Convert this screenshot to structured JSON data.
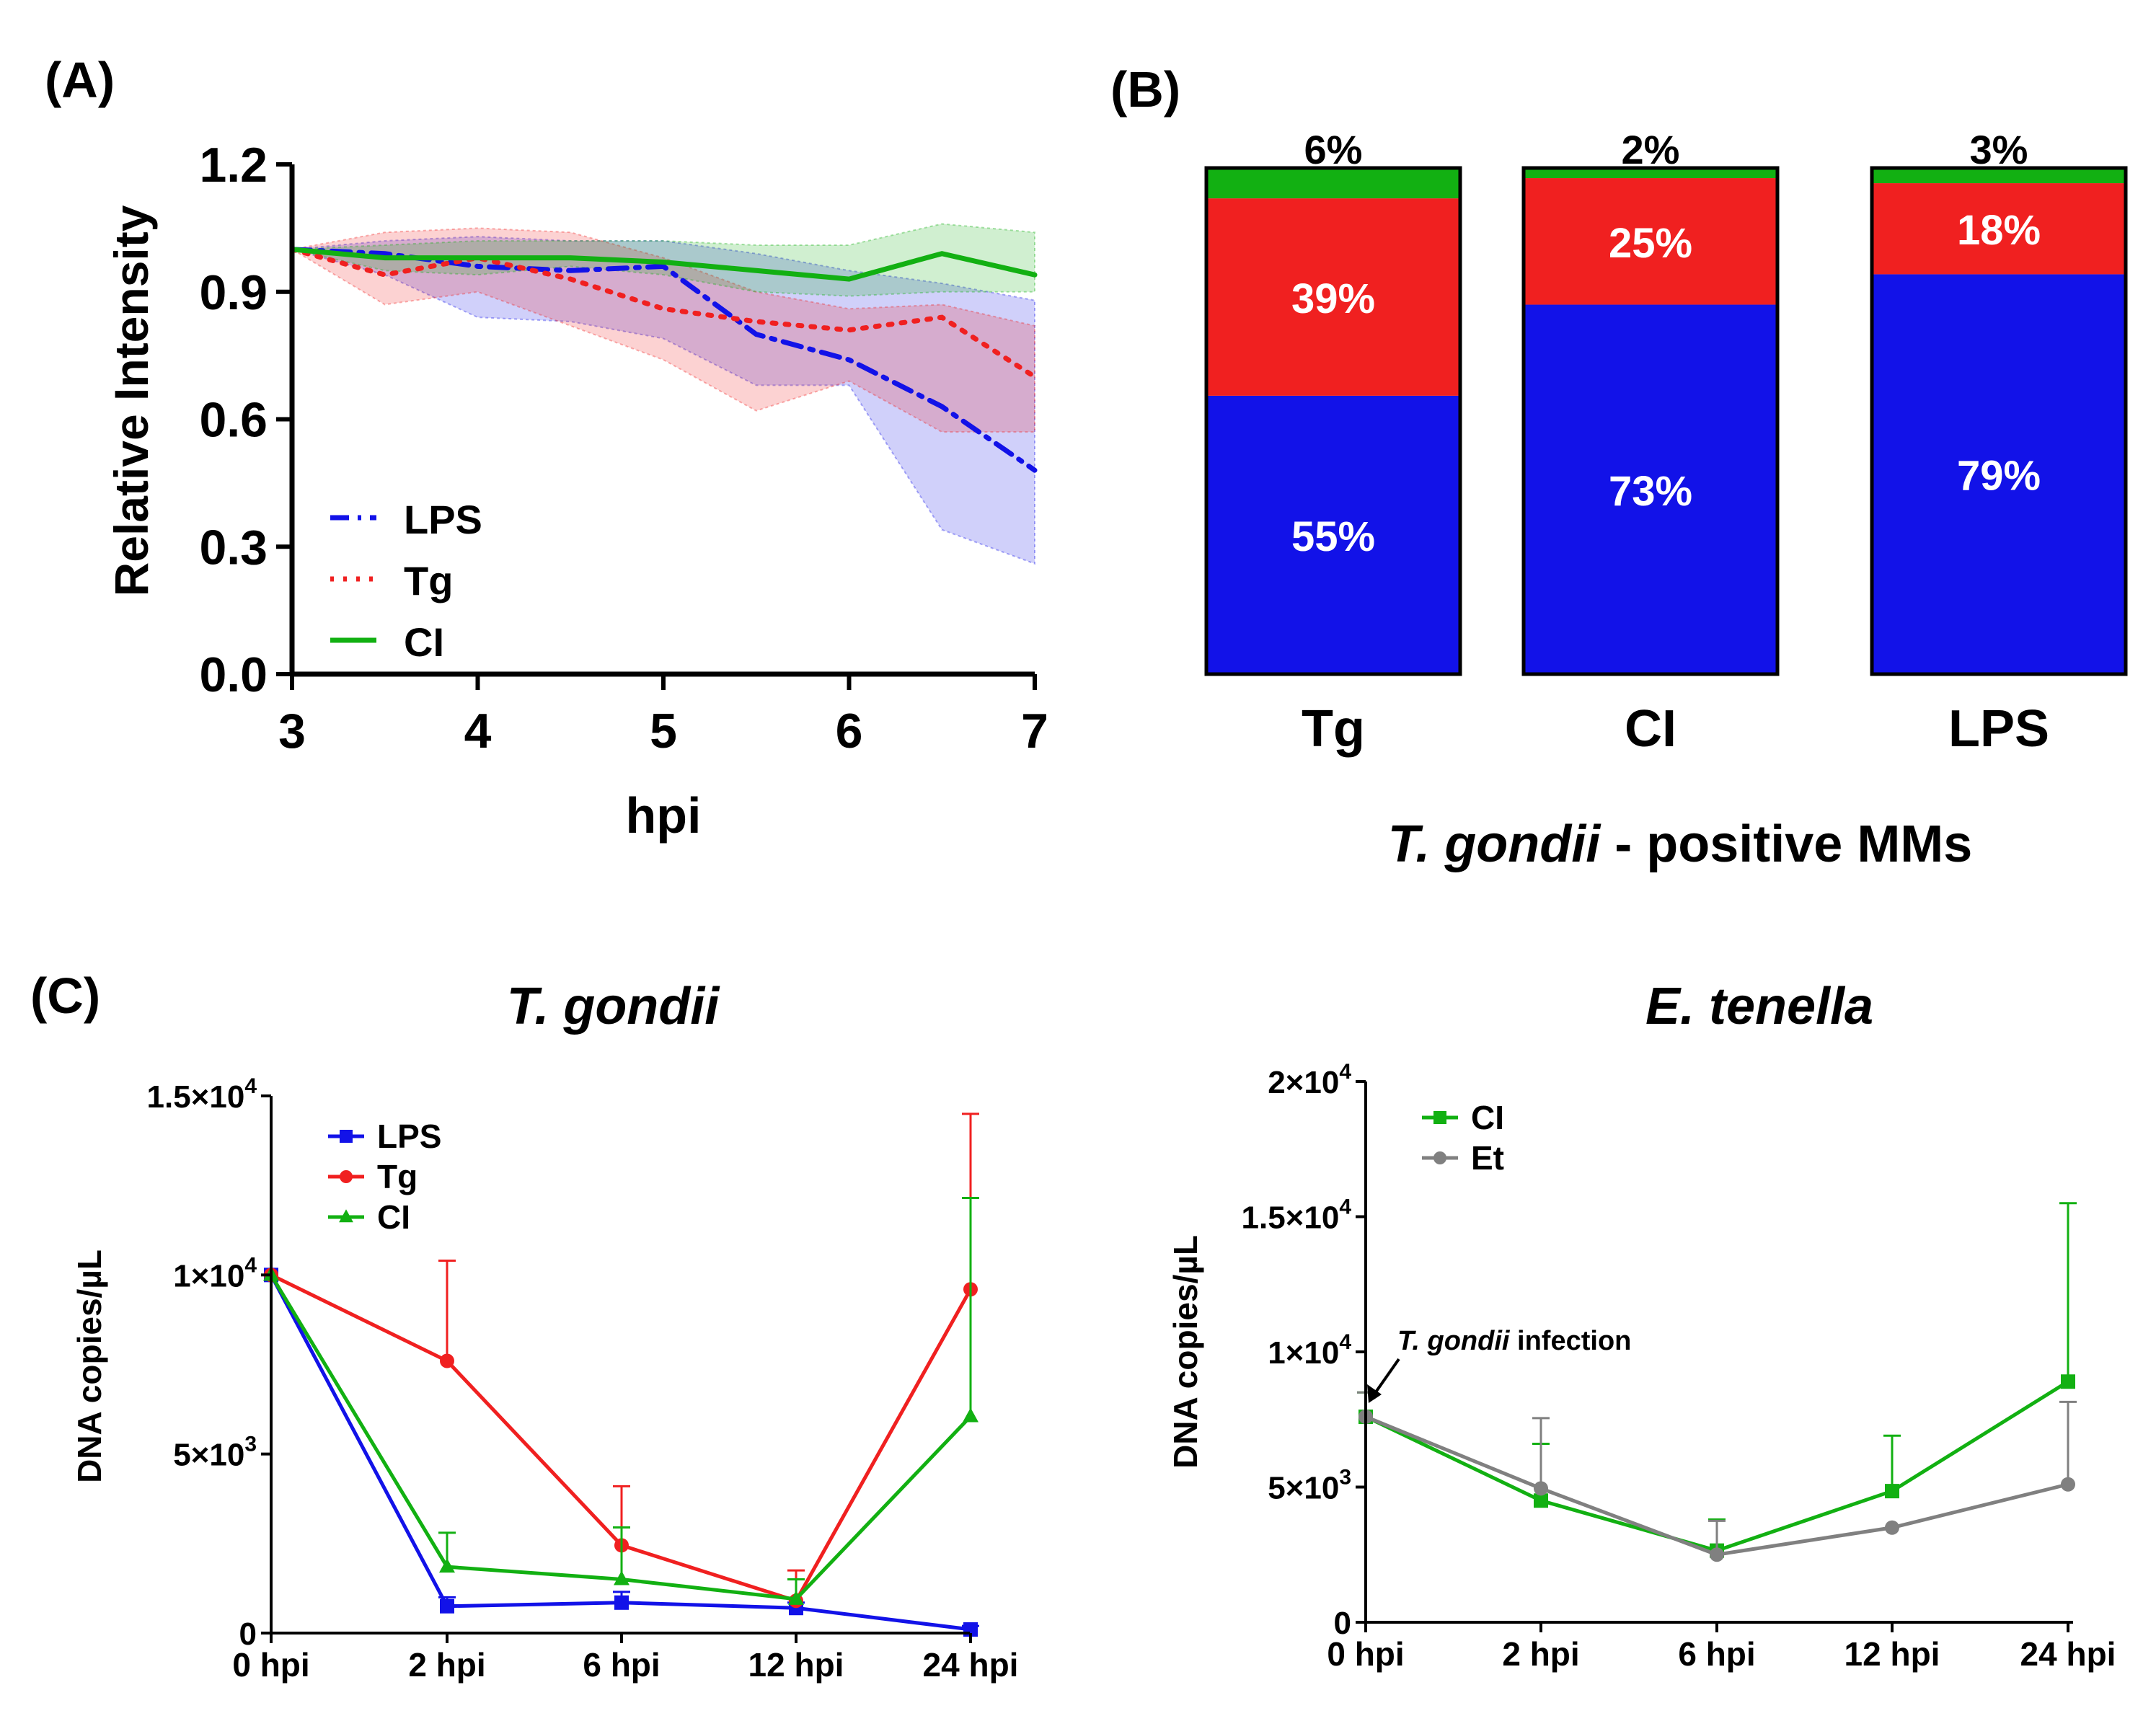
{
  "colors": {
    "lps": "#1212e8",
    "tg": "#f02020",
    "ci": "#12b012",
    "et": "#808080",
    "axis": "#000000"
  },
  "chart_data": [
    {
      "panel_label": "(A)",
      "type": "line",
      "xlabel": "hpi",
      "ylabel": "Relative Intensity",
      "xlim": [
        3,
        7
      ],
      "ylim": [
        0,
        1.2
      ],
      "xticks": [
        "3",
        "4",
        "5",
        "6",
        "7"
      ],
      "yticks": [
        "0.0",
        "0.3",
        "0.6",
        "0.9",
        "1.2"
      ],
      "legend_position": "bottom-left",
      "series": [
        {
          "name": "LPS",
          "key": "lps",
          "dash": "dashdot",
          "x": [
            3,
            3.5,
            4,
            4.5,
            5,
            5.5,
            6,
            6.5,
            7
          ],
          "y": [
            1.0,
            0.99,
            0.96,
            0.95,
            0.96,
            0.8,
            0.74,
            0.63,
            0.48
          ],
          "upper": [
            1.0,
            1.02,
            1.03,
            1.02,
            1.02,
            0.99,
            0.95,
            0.92,
            0.88
          ],
          "lower": [
            1.0,
            0.94,
            0.84,
            0.83,
            0.79,
            0.68,
            0.68,
            0.34,
            0.26
          ]
        },
        {
          "name": "Tg",
          "key": "tg",
          "dash": "dotted",
          "x": [
            3,
            3.5,
            4,
            4.5,
            5,
            5.5,
            6,
            6.5,
            7
          ],
          "y": [
            1.0,
            0.94,
            0.98,
            0.93,
            0.86,
            0.83,
            0.81,
            0.84,
            0.7
          ],
          "upper": [
            1.0,
            1.04,
            1.05,
            1.04,
            0.98,
            0.9,
            0.86,
            0.87,
            0.82
          ],
          "lower": [
            1.0,
            0.87,
            0.9,
            0.82,
            0.74,
            0.62,
            0.69,
            0.57,
            0.57
          ]
        },
        {
          "name": "CI",
          "key": "ci",
          "dash": "solid",
          "x": [
            3,
            3.5,
            4,
            4.5,
            5,
            5.5,
            6,
            6.5,
            7
          ],
          "y": [
            1.0,
            0.98,
            0.98,
            0.98,
            0.97,
            0.95,
            0.93,
            0.99,
            0.94
          ],
          "upper": [
            1.0,
            1.01,
            1.02,
            1.02,
            1.02,
            1.01,
            1.01,
            1.06,
            1.04
          ],
          "lower": [
            1.0,
            0.95,
            0.94,
            0.96,
            0.94,
            0.9,
            0.89,
            0.9,
            0.9
          ]
        }
      ]
    },
    {
      "panel_label": "(B)",
      "type": "stacked-bar",
      "categories": [
        "Tg",
        "CI",
        "LPS"
      ],
      "xlabel_italic": "T. gondii",
      "xlabel_rest": " - positive MMs",
      "series": [
        {
          "key": "lps",
          "values": [
            55,
            73,
            79
          ],
          "labels": [
            "55%",
            "73%",
            "79%"
          ]
        },
        {
          "key": "tg",
          "values": [
            39,
            25,
            18
          ],
          "labels": [
            "39%",
            "25%",
            "18%"
          ]
        },
        {
          "key": "ci",
          "values": [
            6,
            2,
            3
          ],
          "labels": [
            "6%",
            "2%",
            "3%"
          ]
        }
      ]
    },
    {
      "panel_label": "(C)",
      "type": "line",
      "title": "T. gondii",
      "ylabel": "DNA copies/µL",
      "categories": [
        "0 hpi",
        "2 hpi",
        "6 hpi",
        "12 hpi",
        "24 hpi"
      ],
      "ylim": [
        0,
        15000
      ],
      "yticks": [
        {
          "value": 0,
          "base": "0",
          "exp": ""
        },
        {
          "value": 5000,
          "base": "5×10",
          "exp": "3"
        },
        {
          "value": 10000,
          "base": "1×10",
          "exp": "4"
        },
        {
          "value": 15000,
          "base": "1.5×10",
          "exp": "4"
        }
      ],
      "legend_position": "top-left",
      "series": [
        {
          "name": "LPS",
          "key": "lps",
          "marker": "square",
          "values": [
            10000,
            750,
            850,
            700,
            100
          ],
          "errors": [
            0,
            250,
            300,
            150,
            100
          ]
        },
        {
          "name": "Tg",
          "key": "tg",
          "marker": "circle",
          "values": [
            10000,
            7600,
            2450,
            900,
            9600
          ],
          "errors": [
            0,
            2800,
            1650,
            850,
            4900
          ]
        },
        {
          "name": "CI",
          "key": "ci",
          "marker": "triangle",
          "values": [
            10000,
            1850,
            1500,
            950,
            6050
          ],
          "errors": [
            0,
            950,
            1450,
            550,
            6100
          ]
        }
      ]
    },
    {
      "panel_label": "",
      "type": "line",
      "title": "E. tenella",
      "ylabel": "DNA copies/µL",
      "categories": [
        "0 hpi",
        "2 hpi",
        "6 hpi",
        "12 hpi",
        "24 hpi"
      ],
      "ylim": [
        0,
        20000
      ],
      "yticks": [
        {
          "value": 0,
          "base": "0",
          "exp": ""
        },
        {
          "value": 5000,
          "base": "5×10",
          "exp": "3"
        },
        {
          "value": 10000,
          "base": "1×10",
          "exp": "4"
        },
        {
          "value": 15000,
          "base": "1.5×10",
          "exp": "4"
        },
        {
          "value": 20000,
          "base": "2×10",
          "exp": "4"
        }
      ],
      "legend_position": "top-left",
      "annotation": {
        "italic": "T. gondii",
        "rest": " infection"
      },
      "series": [
        {
          "name": "CI",
          "key": "ci",
          "marker": "square",
          "values": [
            7600,
            4500,
            2650,
            4850,
            8900
          ],
          "errors": [
            900,
            2100,
            1150,
            2050,
            6600
          ]
        },
        {
          "name": "Et",
          "key": "et",
          "marker": "circle",
          "values": [
            7600,
            4950,
            2500,
            3500,
            5100
          ],
          "errors": [
            900,
            2600,
            1250,
            0,
            3050
          ]
        }
      ]
    }
  ]
}
